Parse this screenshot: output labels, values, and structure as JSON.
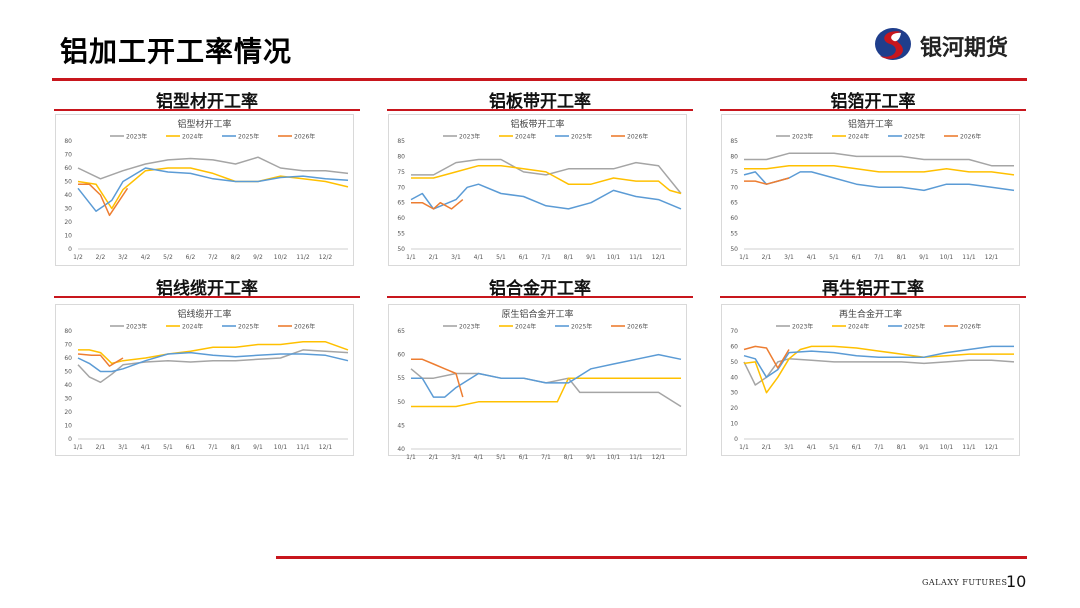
{
  "page": {
    "title": "铝加工开工率情况",
    "brand": "银河期货",
    "footer_brand": "GALAXY FUTURES",
    "page_number": "10",
    "accent": "#c8161d"
  },
  "panels": [
    {
      "heading": "铝型材开工率"
    },
    {
      "heading": "铝板带开工率"
    },
    {
      "heading": "铝箔开工率"
    },
    {
      "heading": "铝线缆开工率"
    },
    {
      "heading": "铝合金开工率"
    },
    {
      "heading": "再生铝开工率"
    }
  ],
  "chart_data": [
    {
      "type": "line",
      "title": "铝型材开工率",
      "ylim": [
        0,
        80
      ],
      "yticks": [
        0,
        10,
        20,
        30,
        40,
        50,
        60,
        70,
        80
      ],
      "xlabels": [
        "1/2",
        "2/2",
        "3/2",
        "4/2",
        "5/2",
        "6/2",
        "7/2",
        "8/2",
        "9/2",
        "10/2",
        "11/2",
        "12/2"
      ],
      "series": [
        {
          "name": "2023年",
          "color": "#a5a5a5",
          "x": [
            0,
            1,
            2,
            3,
            4,
            5,
            6,
            7,
            8,
            9,
            10,
            11,
            12
          ],
          "values": [
            60,
            52,
            58,
            63,
            66,
            67,
            66,
            63,
            68,
            60,
            58,
            58,
            56
          ]
        },
        {
          "name": "2024年",
          "color": "#ffc000",
          "x": [
            0,
            0.8,
            1.5,
            2,
            3,
            4,
            5,
            6,
            7,
            8,
            9,
            10,
            11,
            12
          ],
          "values": [
            50,
            48,
            30,
            44,
            58,
            60,
            60,
            56,
            50,
            50,
            54,
            52,
            50,
            46
          ]
        },
        {
          "name": "2025年",
          "color": "#5b9bd5",
          "x": [
            0,
            0.8,
            1.5,
            2,
            3,
            4,
            5,
            6,
            7,
            8,
            9,
            10,
            11,
            12
          ],
          "values": [
            45,
            28,
            36,
            50,
            60,
            57,
            56,
            52,
            50,
            50,
            53,
            54,
            52,
            51
          ]
        },
        {
          "name": "2026年",
          "color": "#ed7d31",
          "x": [
            0,
            0.5,
            1,
            1.4,
            1.8,
            2.2
          ],
          "values": [
            48,
            48,
            40,
            25,
            35,
            45
          ]
        }
      ]
    },
    {
      "type": "line",
      "title": "铝板带开工率",
      "ylim": [
        50,
        85
      ],
      "yticks": [
        50,
        55,
        60,
        65,
        70,
        75,
        80,
        85
      ],
      "xlabels": [
        "1/1",
        "2/1",
        "3/1",
        "4/1",
        "5/1",
        "6/1",
        "7/1",
        "8/1",
        "9/1",
        "10/1",
        "11/1",
        "12/1"
      ],
      "series": [
        {
          "name": "2023年",
          "color": "#a5a5a5",
          "x": [
            0,
            1,
            2,
            3,
            4,
            5,
            6,
            7,
            8,
            9,
            10,
            11,
            12
          ],
          "values": [
            74,
            74,
            78,
            79,
            79,
            75,
            74,
            76,
            76,
            76,
            78,
            77,
            68
          ]
        },
        {
          "name": "2024年",
          "color": "#ffc000",
          "x": [
            0,
            1,
            2,
            3,
            4,
            5,
            6,
            7,
            8,
            9,
            10,
            11,
            11.5,
            12
          ],
          "values": [
            73,
            73,
            75,
            77,
            77,
            76,
            75,
            71,
            71,
            73,
            72,
            72,
            69,
            68
          ]
        },
        {
          "name": "2025年",
          "color": "#5b9bd5",
          "x": [
            0,
            0.5,
            1,
            2,
            2.5,
            3,
            4,
            5,
            6,
            7,
            8,
            9,
            10,
            11,
            12
          ],
          "values": [
            66,
            68,
            63,
            66,
            70,
            71,
            68,
            67,
            64,
            63,
            65,
            69,
            67,
            66,
            63
          ]
        },
        {
          "name": "2026年",
          "color": "#ed7d31",
          "x": [
            0,
            0.5,
            1,
            1.3,
            1.8,
            2.3
          ],
          "values": [
            65,
            65,
            63,
            65,
            63,
            66
          ]
        }
      ]
    },
    {
      "type": "line",
      "title": "铝箔开工率",
      "ylim": [
        50,
        85
      ],
      "yticks": [
        50,
        55,
        60,
        65,
        70,
        75,
        80,
        85
      ],
      "xlabels": [
        "1/1",
        "2/1",
        "3/1",
        "4/1",
        "5/1",
        "6/1",
        "7/1",
        "8/1",
        "9/1",
        "10/1",
        "11/1",
        "12/1"
      ],
      "series": [
        {
          "name": "2023年",
          "color": "#a5a5a5",
          "x": [
            0,
            1,
            2,
            3,
            4,
            5,
            6,
            7,
            8,
            9,
            10,
            11,
            12
          ],
          "values": [
            79,
            79,
            81,
            81,
            81,
            80,
            80,
            80,
            79,
            79,
            79,
            77,
            77
          ]
        },
        {
          "name": "2024年",
          "color": "#ffc000",
          "x": [
            0,
            1,
            2,
            3,
            4,
            5,
            6,
            7,
            8,
            9,
            10,
            11,
            12
          ],
          "values": [
            76,
            76,
            77,
            77,
            77,
            76,
            75,
            75,
            75,
            76,
            75,
            75,
            74
          ]
        },
        {
          "name": "2025年",
          "color": "#5b9bd5",
          "x": [
            0,
            0.5,
            1,
            1.5,
            2,
            2.5,
            3,
            4,
            5,
            6,
            7,
            8,
            9,
            10,
            11,
            12
          ],
          "values": [
            74,
            75,
            71,
            72,
            73,
            75,
            75,
            73,
            71,
            70,
            70,
            69,
            71,
            71,
            70,
            69
          ]
        },
        {
          "name": "2026年",
          "color": "#ed7d31",
          "x": [
            0,
            0.5,
            1,
            1.5,
            2
          ],
          "values": [
            72,
            72,
            71,
            72,
            73
          ]
        }
      ]
    },
    {
      "type": "line",
      "title": "铝线缆开工率",
      "ylim": [
        0,
        80
      ],
      "yticks": [
        0,
        10,
        20,
        30,
        40,
        50,
        60,
        70,
        80
      ],
      "xlabels": [
        "1/1",
        "2/1",
        "3/1",
        "4/1",
        "5/1",
        "6/1",
        "7/1",
        "8/1",
        "9/1",
        "10/1",
        "11/1",
        "12/1"
      ],
      "series": [
        {
          "name": "2023年",
          "color": "#a5a5a5",
          "x": [
            0,
            0.5,
            1,
            1.5,
            2,
            3,
            4,
            5,
            6,
            7,
            8,
            9,
            10,
            11,
            12
          ],
          "values": [
            55,
            46,
            42,
            48,
            55,
            57,
            58,
            57,
            58,
            58,
            59,
            60,
            66,
            65,
            64
          ]
        },
        {
          "name": "2024年",
          "color": "#ffc000",
          "x": [
            0,
            0.5,
            1,
            1.5,
            2,
            3,
            4,
            5,
            6,
            7,
            8,
            9,
            10,
            11,
            12
          ],
          "values": [
            66,
            66,
            64,
            56,
            58,
            60,
            63,
            65,
            68,
            68,
            70,
            70,
            72,
            72,
            66
          ]
        },
        {
          "name": "2025年",
          "color": "#5b9bd5",
          "x": [
            0,
            0.5,
            1,
            1.5,
            2,
            3,
            4,
            5,
            6,
            7,
            8,
            9,
            10,
            11,
            12
          ],
          "values": [
            60,
            56,
            50,
            50,
            52,
            58,
            63,
            64,
            62,
            61,
            62,
            63,
            63,
            62,
            58
          ]
        },
        {
          "name": "2026年",
          "color": "#ed7d31",
          "x": [
            0,
            0.6,
            1,
            1.4,
            2
          ],
          "values": [
            63,
            62,
            62,
            54,
            60
          ]
        }
      ]
    },
    {
      "type": "line",
      "title": "原生铝合金开工率",
      "ylim": [
        40,
        65
      ],
      "yticks": [
        40,
        45,
        50,
        55,
        60,
        65
      ],
      "xlabels": [
        "1/1",
        "2/1",
        "3/1",
        "4/1",
        "5/1",
        "6/1",
        "7/1",
        "8/1",
        "9/1",
        "10/1",
        "11/1",
        "12/1"
      ],
      "series": [
        {
          "name": "2023年",
          "color": "#a5a5a5",
          "x": [
            0,
            0.5,
            1,
            2,
            3,
            4,
            5,
            6,
            7,
            7.5,
            8,
            9,
            10,
            11,
            12
          ],
          "values": [
            57,
            55,
            55,
            56,
            56,
            55,
            55,
            54,
            55,
            52,
            52,
            52,
            52,
            52,
            49
          ]
        },
        {
          "name": "2024年",
          "color": "#ffc000",
          "x": [
            0,
            1,
            2,
            3,
            4,
            5,
            6,
            6.5,
            7,
            8,
            9,
            10,
            11,
            12
          ],
          "values": [
            49,
            49,
            49,
            50,
            50,
            50,
            50,
            50,
            55,
            55,
            55,
            55,
            55,
            55
          ]
        },
        {
          "name": "2025年",
          "color": "#5b9bd5",
          "x": [
            0,
            0.5,
            1,
            1.5,
            2,
            3,
            4,
            5,
            6,
            7,
            8,
            9,
            10,
            11,
            12
          ],
          "values": [
            55,
            55,
            51,
            51,
            53,
            56,
            55,
            55,
            54,
            54,
            57,
            58,
            59,
            60,
            59
          ]
        },
        {
          "name": "2026年",
          "color": "#ed7d31",
          "x": [
            0,
            0.5,
            1,
            1.5,
            2,
            2.3
          ],
          "values": [
            59,
            59,
            58,
            57,
            56,
            51
          ]
        }
      ]
    },
    {
      "type": "line",
      "title": "再生合金开工率",
      "ylim": [
        0,
        70
      ],
      "yticks": [
        0,
        10,
        20,
        30,
        40,
        50,
        60,
        70
      ],
      "xlabels": [
        "1/1",
        "2/1",
        "3/1",
        "4/1",
        "5/1",
        "6/1",
        "7/1",
        "8/1",
        "9/1",
        "10/1",
        "11/1",
        "12/1"
      ],
      "series": [
        {
          "name": "2023年",
          "color": "#a5a5a5",
          "x": [
            0,
            0.5,
            1,
            1.5,
            2,
            3,
            4,
            5,
            6,
            7,
            8,
            9,
            10,
            11,
            12
          ],
          "values": [
            50,
            35,
            40,
            50,
            52,
            51,
            50,
            50,
            50,
            50,
            49,
            50,
            51,
            51,
            50
          ]
        },
        {
          "name": "2024年",
          "color": "#ffc000",
          "x": [
            0,
            0.5,
            1,
            1.5,
            2,
            2.5,
            3,
            4,
            5,
            6,
            7,
            8,
            9,
            10,
            11,
            12
          ],
          "values": [
            49,
            50,
            30,
            40,
            52,
            58,
            60,
            60,
            59,
            57,
            55,
            53,
            54,
            55,
            55,
            55
          ]
        },
        {
          "name": "2025年",
          "color": "#5b9bd5",
          "x": [
            0,
            0.5,
            1,
            1.5,
            2,
            3,
            4,
            5,
            6,
            7,
            8,
            9,
            10,
            11,
            12
          ],
          "values": [
            54,
            52,
            40,
            45,
            56,
            57,
            56,
            54,
            53,
            53,
            53,
            56,
            58,
            60,
            60
          ]
        },
        {
          "name": "2026年",
          "color": "#ed7d31",
          "x": [
            0,
            0.5,
            1,
            1.5,
            2
          ],
          "values": [
            58,
            60,
            59,
            46,
            58
          ]
        }
      ]
    }
  ]
}
